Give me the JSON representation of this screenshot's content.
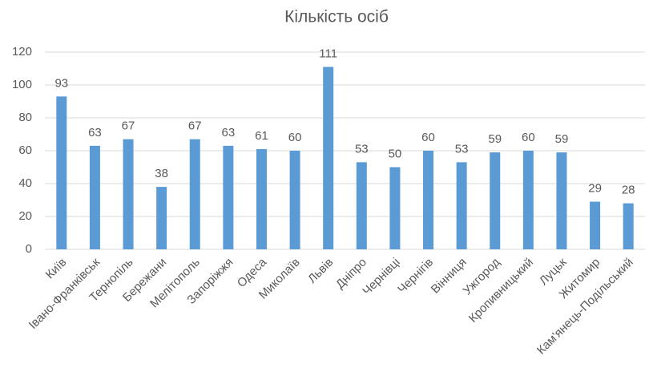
{
  "chart_data": {
    "type": "bar",
    "title": "Кількість осіб",
    "categories": [
      "Київ",
      "Івано-Франківськ",
      "Тернопіль",
      "Бережани",
      "Мелітополь",
      "Запоріжжя",
      "Одеса",
      "Миколаїв",
      "Львів",
      "Дніпро",
      "Чернівці",
      "Чернігів",
      "Вінниця",
      "Ужгород",
      "Кропивницький",
      "Луцьк",
      "Житомир",
      "Кам'янець-Подільський"
    ],
    "values": [
      93,
      63,
      67,
      38,
      67,
      63,
      61,
      60,
      111,
      53,
      50,
      60,
      53,
      59,
      60,
      59,
      29,
      28
    ],
    "color": "#5b9bd5",
    "ylim": [
      0,
      120
    ],
    "yticks": [
      0,
      20,
      40,
      60,
      80,
      100,
      120
    ],
    "grid": true
  }
}
